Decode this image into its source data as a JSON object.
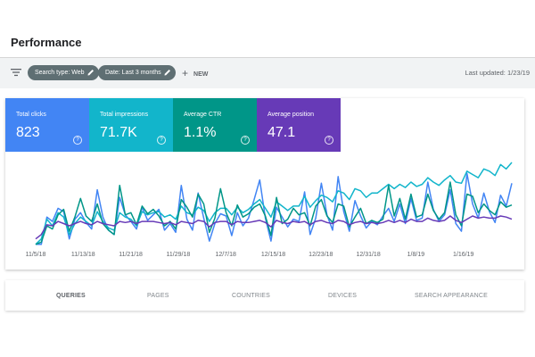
{
  "header": {
    "title": "Performance"
  },
  "filters": {
    "chips": [
      {
        "label": "Search type: Web"
      },
      {
        "label": "Date: Last 3 months"
      }
    ],
    "new_label": "NEW",
    "last_updated": "Last updated: 1/23/19"
  },
  "metrics": [
    {
      "label": "Total clicks",
      "value": "823",
      "color": "#4285f4"
    },
    {
      "label": "Total impressions",
      "value": "71.7K",
      "color": "#12b5cb"
    },
    {
      "label": "Average CTR",
      "value": "1.1%",
      "color": "#009688"
    },
    {
      "label": "Average position",
      "value": "47.1",
      "color": "#673ab7"
    }
  ],
  "chart_data": {
    "type": "line",
    "x_ticks": [
      "11/5/18",
      "11/13/18",
      "11/21/18",
      "11/29/18",
      "12/7/18",
      "12/15/18",
      "12/23/18",
      "12/31/18",
      "1/8/19",
      "1/16/19"
    ],
    "y_axis_labels_visible": false,
    "grid": false,
    "series": [
      {
        "color": "#4285f4",
        "values": [
          1,
          1,
          26,
          22,
          34,
          31,
          6,
          24,
          30,
          21,
          15,
          51,
          26,
          14,
          10,
          44,
          28,
          22,
          15,
          35,
          23,
          28,
          33,
          14,
          20,
          12,
          55,
          24,
          14,
          48,
          25,
          4,
          20,
          29,
          27,
          9,
          30,
          18,
          25,
          42,
          60,
          25,
          4,
          35,
          26,
          17,
          24,
          22,
          49,
          10,
          25,
          57,
          28,
          14,
          63,
          31,
          13,
          41,
          27,
          16,
          22,
          19,
          27,
          34,
          22,
          38,
          20,
          43,
          23,
          25,
          58,
          33,
          22,
          28,
          51,
          20,
          13,
          66,
          38,
          25,
          48,
          31,
          21,
          46,
          36,
          57
        ]
      },
      {
        "color": "#12b5cb",
        "values": [
          1,
          6,
          24,
          18,
          30,
          26,
          10,
          20,
          26,
          22,
          18,
          31,
          22,
          16,
          14,
          30,
          26,
          24,
          18,
          31,
          28,
          30,
          31,
          26,
          28,
          24,
          36,
          30,
          28,
          35,
          32,
          22,
          30,
          34,
          34,
          28,
          35,
          30,
          33,
          38,
          42,
          34,
          26,
          40,
          36,
          32,
          36,
          36,
          45,
          35,
          41,
          46,
          44,
          40,
          50,
          48,
          42,
          52,
          50,
          44,
          48,
          48,
          52,
          56,
          52,
          56,
          53,
          58,
          54,
          56,
          62,
          58,
          55,
          60,
          64,
          58,
          57,
          68,
          65,
          62,
          70,
          68,
          64,
          74,
          70,
          76
        ]
      },
      {
        "color": "#009688",
        "values": [
          1,
          3,
          18,
          15,
          28,
          33,
          13,
          26,
          43,
          27,
          22,
          38,
          20,
          14,
          10,
          55,
          28,
          30,
          19,
          36,
          29,
          33,
          27,
          18,
          22,
          15,
          42,
          35,
          26,
          47,
          38,
          12,
          25,
          52,
          30,
          18,
          37,
          26,
          29,
          35,
          38,
          27,
          9,
          44,
          20,
          24,
          34,
          28,
          30,
          18,
          36,
          42,
          27,
          21,
          38,
          36,
          17,
          26,
          34,
          20,
          23,
          21,
          24,
          55,
          27,
          43,
          24,
          47,
          26,
          28,
          47,
          32,
          24,
          30,
          58,
          28,
          18,
          47,
          45,
          30,
          38,
          32,
          28,
          40,
          35,
          37
        ]
      },
      {
        "color": "#673ab7",
        "values": [
          6,
          10,
          19,
          18,
          22,
          20,
          18,
          20,
          22,
          20,
          19,
          22,
          20,
          19,
          18,
          22,
          21,
          22,
          20,
          22,
          22,
          22,
          21,
          20,
          21,
          19,
          22,
          21,
          20,
          23,
          22,
          17,
          21,
          22,
          22,
          19,
          22,
          21,
          21,
          22,
          23,
          21,
          17,
          23,
          21,
          20,
          22,
          21,
          22,
          19,
          22,
          23,
          21,
          20,
          23,
          22,
          19,
          21,
          22,
          20,
          21,
          20,
          21,
          23,
          21,
          23,
          21,
          24,
          22,
          22,
          25,
          23,
          22,
          23,
          27,
          23,
          21,
          24,
          27,
          25,
          26,
          25,
          25,
          27,
          26,
          24
        ]
      }
    ]
  },
  "tabs": [
    {
      "label": "QUERIES",
      "active": true
    },
    {
      "label": "PAGES",
      "active": false
    },
    {
      "label": "COUNTRIES",
      "active": false
    },
    {
      "label": "DEVICES",
      "active": false
    },
    {
      "label": "SEARCH APPEARANCE",
      "active": false
    }
  ]
}
